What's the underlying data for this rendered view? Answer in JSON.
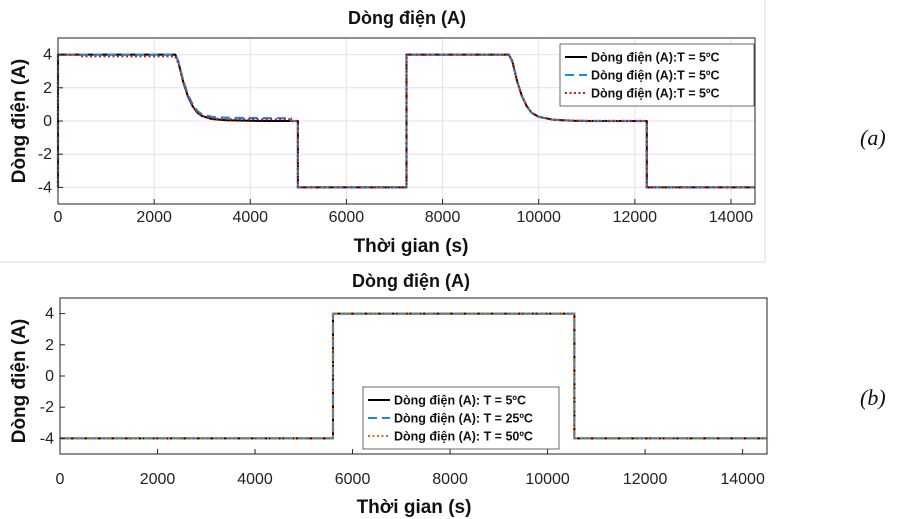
{
  "captions": [
    "(a)",
    "(b)"
  ],
  "chart_data": [
    {
      "type": "line",
      "title": "Dòng điện (A)",
      "xlabel": "Thời gian (s)",
      "ylabel": "Dòng điện (A)",
      "xlim": [
        0,
        14500
      ],
      "ylim": [
        -5,
        5
      ],
      "xticks": [
        0,
        2000,
        4000,
        6000,
        8000,
        10000,
        12000,
        14000
      ],
      "yticks": [
        -4,
        -2,
        0,
        2,
        4
      ],
      "grid": true,
      "legend_position": "top-right",
      "series": [
        {
          "name": "Dòng điện (A):T = 5ºC",
          "color": "#000000",
          "style": "solid",
          "x": [
            0,
            0,
            2440,
            2500,
            2600,
            2700,
            2800,
            2900,
            3000,
            3200,
            3500,
            4000,
            4500,
            4990,
            4990,
            7250,
            7250,
            9380,
            9450,
            9550,
            9650,
            9750,
            9850,
            10000,
            10300,
            10700,
            11000,
            12250,
            12250,
            14500
          ],
          "y": [
            -4,
            4,
            4,
            3.6,
            2.4,
            1.5,
            0.9,
            0.5,
            0.3,
            0.12,
            0.04,
            0.01,
            0,
            0,
            -4,
            -4,
            4,
            4,
            3.6,
            2.4,
            1.5,
            0.9,
            0.5,
            0.25,
            0.08,
            0.02,
            0,
            0,
            -4,
            -4
          ]
        },
        {
          "name": "Dòng điện (A):T = 5ºC",
          "color": "#1a8ed8",
          "style": "dashed",
          "x": [
            0,
            0,
            2440,
            2500,
            2600,
            2700,
            2800,
            2900,
            3000,
            3200,
            3500,
            4000,
            4500,
            4850,
            4850,
            4990,
            4990,
            7250,
            7250,
            9380,
            9450,
            9550,
            9650,
            9750,
            9850,
            10000,
            10300,
            10700,
            11000,
            12250,
            12250,
            14500
          ],
          "y": [
            -4,
            4,
            4,
            3.6,
            2.5,
            1.6,
            1.0,
            0.6,
            0.4,
            0.25,
            0.2,
            0.18,
            0.17,
            0.17,
            0,
            0,
            -4,
            -4,
            4,
            4,
            3.6,
            2.4,
            1.5,
            0.9,
            0.5,
            0.25,
            0.08,
            0.02,
            0,
            0,
            -4,
            -4
          ]
        },
        {
          "name": "Dòng điện (A):T = 5ºC",
          "color": "#c0201a",
          "style": "dotted",
          "x": [
            0,
            0,
            500,
            500,
            2440,
            2500,
            2600,
            2700,
            2800,
            2900,
            3000,
            3200,
            3500,
            4000,
            4500,
            4850,
            4850,
            4990,
            4990,
            7250,
            7250,
            9380,
            9450,
            9550,
            9650,
            9750,
            9850,
            10000,
            10300,
            10700,
            11000,
            12250,
            12250,
            14500
          ],
          "y": [
            -4,
            4,
            4,
            3.9,
            3.9,
            3.5,
            2.4,
            1.5,
            0.9,
            0.5,
            0.3,
            0.15,
            0.1,
            0.1,
            0.1,
            0.1,
            0,
            0,
            -4,
            -4,
            4,
            4,
            3.6,
            2.4,
            1.5,
            0.9,
            0.5,
            0.25,
            0.08,
            0.02,
            0,
            0,
            -4,
            -4
          ]
        }
      ]
    },
    {
      "type": "line",
      "title": "Dòng điện (A)",
      "xlabel": "Thời gian (s)",
      "ylabel": "Dòng điện (A)",
      "xlim": [
        0,
        14500
      ],
      "ylim": [
        -5,
        5
      ],
      "xticks": [
        0,
        2000,
        4000,
        6000,
        8000,
        10000,
        12000,
        14000
      ],
      "yticks": [
        -4,
        -2,
        0,
        2,
        4
      ],
      "grid": false,
      "legend_position": "bottom-center",
      "series": [
        {
          "name": "Dòng điện (A): T = 5ºC",
          "color": "#000000",
          "style": "solid",
          "x": [
            0,
            5600,
            5600,
            10550,
            10550,
            14500
          ],
          "y": [
            -4,
            -4,
            4,
            4,
            -4,
            -4
          ]
        },
        {
          "name": "Dòng điện (A): T = 25ºC",
          "color": "#1a8ed8",
          "style": "dashed",
          "x": [
            0,
            5600,
            5600,
            10550,
            10550,
            14500
          ],
          "y": [
            -4,
            -4,
            4,
            4,
            -4,
            -4
          ]
        },
        {
          "name": "Dòng điện (A): T = 50ºC",
          "color": "#e06a10",
          "style": "dotted",
          "x": [
            0,
            5600,
            5600,
            10550,
            10550,
            14500
          ],
          "y": [
            -4,
            -4,
            4,
            4,
            -4,
            -4
          ]
        }
      ]
    }
  ]
}
